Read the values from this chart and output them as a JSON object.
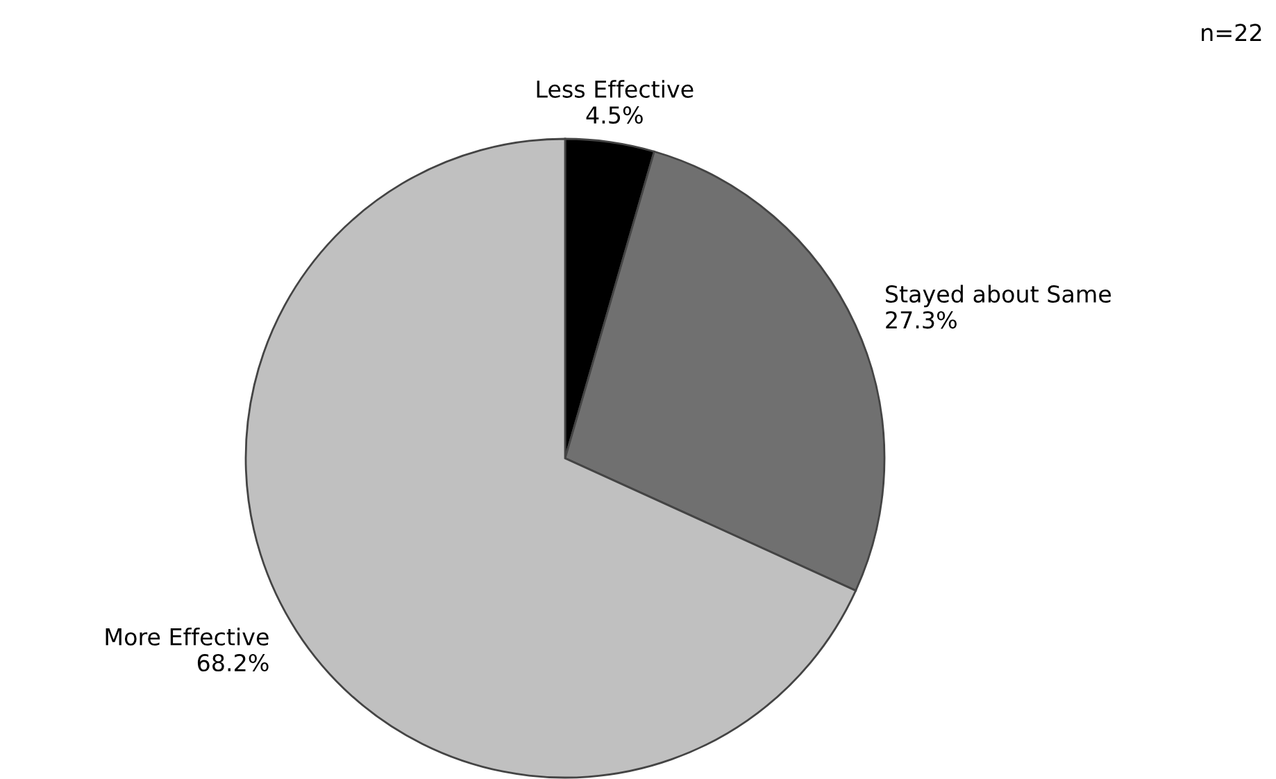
{
  "chart_data": {
    "type": "pie",
    "categories": [
      "Less Effective",
      "Stayed about Same",
      "More Effective"
    ],
    "values": [
      4.5,
      27.3,
      68.2
    ],
    "colors": [
      "#000000",
      "#707070",
      "#c0c0c0"
    ],
    "value_labels": [
      "4.5%",
      "27.3%",
      "68.2%"
    ],
    "annotations": [
      "n=22"
    ]
  }
}
